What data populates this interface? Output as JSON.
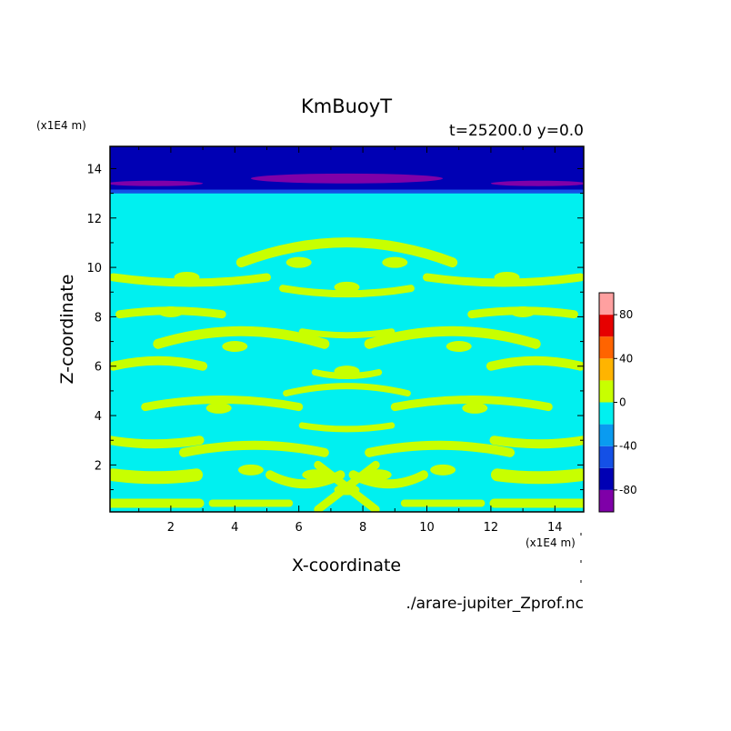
{
  "chart_data": {
    "type": "heatmap",
    "title": "KmBuoyT",
    "subtitle": "t=25200.0 y=0.0",
    "xlabel": "X-coordinate",
    "ylabel": "Z-coordinate",
    "x_unit": "(x1E4 m)",
    "y_unit": "(x1E4 m)",
    "source_file": "./arare-jupiter_Zprof.nc",
    "xlim": [
      0.1,
      14.9
    ],
    "ylim": [
      0.1,
      14.9
    ],
    "x_ticks": [
      2,
      4,
      6,
      8,
      10,
      12,
      14
    ],
    "y_ticks": [
      2,
      4,
      6,
      8,
      10,
      12,
      14
    ],
    "x_tick_labels": [
      "2",
      "4",
      "6",
      "8",
      "10",
      "12",
      "14"
    ],
    "y_tick_labels": [
      "2",
      "4",
      "6",
      "8",
      "10",
      "12",
      "14"
    ],
    "colorbar": {
      "levels": [
        -100,
        -80,
        -60,
        -40,
        -20,
        0,
        20,
        40,
        60,
        80,
        100
      ],
      "colors": [
        "#7f00a8",
        "#0000b4",
        "#1450e6",
        "#0a9bf0",
        "#00f0f0",
        "#c8ff00",
        "#ffb400",
        "#ff6400",
        "#e60000",
        "#ffa0a0"
      ],
      "tick_values": [
        80,
        40,
        0,
        -40,
        -80
      ],
      "tick_labels": [
        "80",
        "40",
        "0",
        "-40",
        "-80"
      ]
    },
    "field_summary": {
      "background_level": "-20 to 0",
      "upper_band": {
        "z_min": 13.0,
        "z_max": 14.9,
        "level": "-80 to -60"
      },
      "upper_band_core": {
        "z_min": 13.4,
        "z_max": 13.8,
        "level": "-100 to -80"
      },
      "positive_features": [
        {
          "x": 1.5,
          "z": 1.5,
          "value": 5
        },
        {
          "x": 4.5,
          "z": 1.8,
          "value": 5
        },
        {
          "x": 6.5,
          "z": 1.6,
          "value": 5
        },
        {
          "x": 7.5,
          "z": 1.0,
          "value": 5
        },
        {
          "x": 8.5,
          "z": 1.6,
          "value": 5
        },
        {
          "x": 10.5,
          "z": 1.8,
          "value": 5
        },
        {
          "x": 13.5,
          "z": 1.5,
          "value": 5
        },
        {
          "x": 3.5,
          "z": 4.3,
          "value": 5
        },
        {
          "x": 11.5,
          "z": 4.3,
          "value": 5
        },
        {
          "x": 7.5,
          "z": 5.8,
          "value": 5
        },
        {
          "x": 4.0,
          "z": 6.8,
          "value": 5
        },
        {
          "x": 11.0,
          "z": 6.8,
          "value": 5
        },
        {
          "x": 2.0,
          "z": 8.2,
          "value": 5
        },
        {
          "x": 13.0,
          "z": 8.2,
          "value": 5
        },
        {
          "x": 6.0,
          "z": 10.2,
          "value": 5
        },
        {
          "x": 9.0,
          "z": 10.2,
          "value": 5
        },
        {
          "x": 7.5,
          "z": 9.2,
          "value": 5
        },
        {
          "x": 2.5,
          "z": 9.6,
          "value": 5
        },
        {
          "x": 12.5,
          "z": 9.6,
          "value": 5
        }
      ]
    }
  }
}
